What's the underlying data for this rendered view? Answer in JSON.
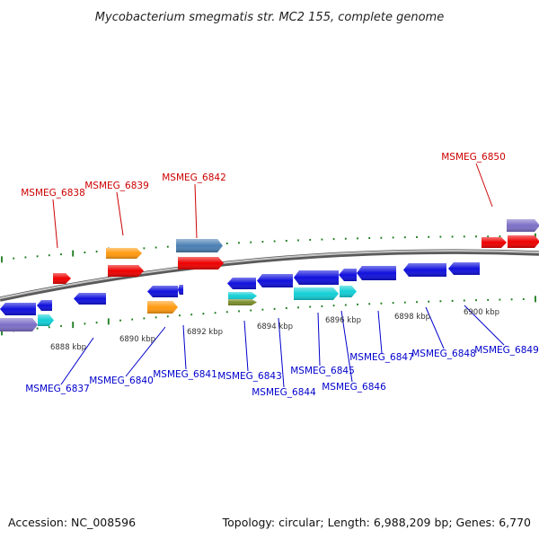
{
  "header": {
    "title": "Mycobacterium smegmatis str. MC2 155, complete genome"
  },
  "footer": {
    "accession": "Accession: NC_008596",
    "summary": "Topology: circular; Length: 6,988,209 bp; Genes: 6,770"
  },
  "colors": {
    "forward_label": "#cc0000",
    "reverse_label": "#0000cc",
    "backbone": "#8c8c8c",
    "ticks": "#1a7a1a",
    "red_gene": "#ee0000",
    "blue_gene": "#1010dd",
    "orange_gene": "#ff9a10",
    "steelblue_gene": "#4a7fb3",
    "cyan_gene": "#12cfd6",
    "purple_gene": "#7d6fc7",
    "olive_gene": "#7a8c2a"
  },
  "scale_labels": [
    "6888 kbp",
    "6890 kbp",
    "6892 kbp",
    "6894 kbp",
    "6896 kbp",
    "6898 kbp",
    "6900 kbp"
  ],
  "forward_genes": [
    "MSMEG_6838",
    "MSMEG_6839",
    "MSMEG_6842",
    "MSMEG_6850"
  ],
  "reverse_genes": [
    "MSMEG_6837",
    "MSMEG_6840",
    "MSMEG_6841",
    "MSMEG_6843",
    "MSMEG_6844",
    "MSMEG_6845",
    "MSMEG_6846",
    "MSMEG_6847",
    "MSMEG_6848",
    "MSMEG_6849"
  ]
}
